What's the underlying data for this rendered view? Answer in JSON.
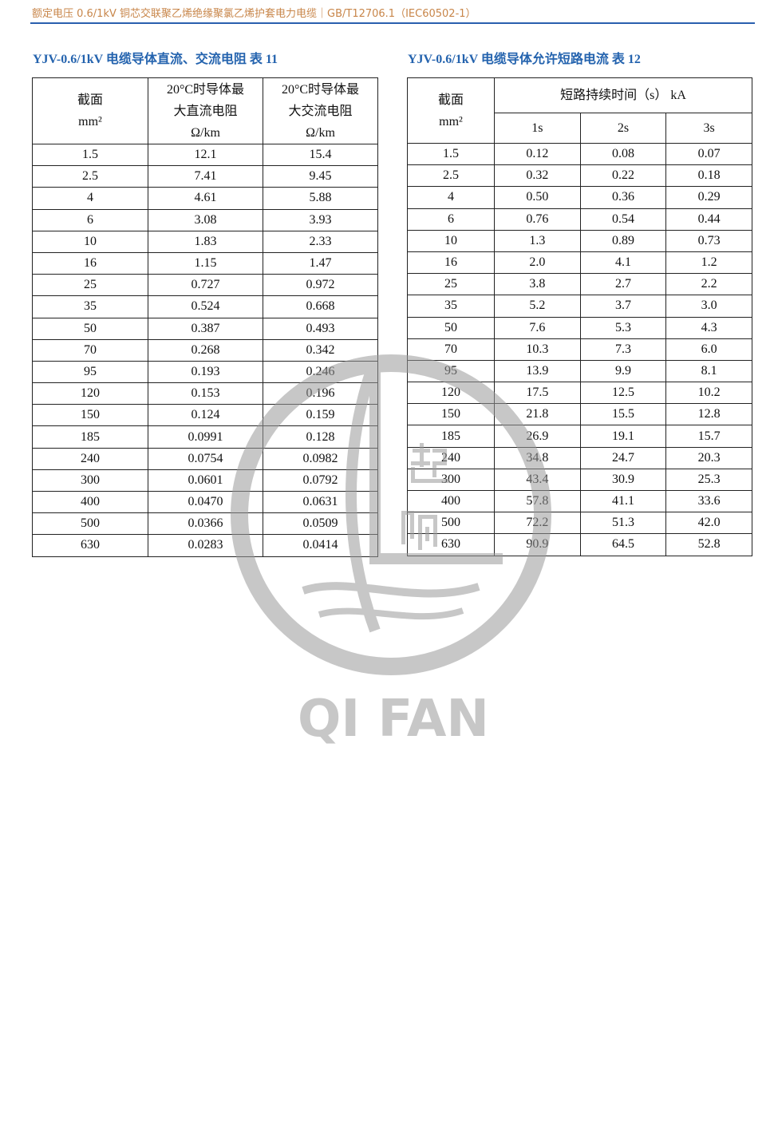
{
  "header": {
    "text": "额定电压 0.6/1kV 铜芯交联聚乙烯绝缘聚氯乙烯护套电力电缆｜GB/T12706.1（IEC60502-1）",
    "rule_color": "#2a5fae"
  },
  "table11": {
    "title": "YJV-0.6/1kV 电缆导体直流、交流电阻  表 11",
    "headers": {
      "section": "截面",
      "section_unit": "mm²",
      "dc_l1": "20°C时导体最",
      "dc_l2": "大直流电阻",
      "dc_unit": "Ω/km",
      "ac_l1": "20°C时导体最",
      "ac_l2": "大交流电阻",
      "ac_unit": "Ω/km"
    },
    "rows": [
      [
        "1.5",
        "12.1",
        "15.4"
      ],
      [
        "2.5",
        "7.41",
        "9.45"
      ],
      [
        "4",
        "4.61",
        "5.88"
      ],
      [
        "6",
        "3.08",
        "3.93"
      ],
      [
        "10",
        "1.83",
        "2.33"
      ],
      [
        "16",
        "1.15",
        "1.47"
      ],
      [
        "25",
        "0.727",
        "0.972"
      ],
      [
        "35",
        "0.524",
        "0.668"
      ],
      [
        "50",
        "0.387",
        "0.493"
      ],
      [
        "70",
        "0.268",
        "0.342"
      ],
      [
        "95",
        "0.193",
        "0.246"
      ],
      [
        "120",
        "0.153",
        "0.196"
      ],
      [
        "150",
        "0.124",
        "0.159"
      ],
      [
        "185",
        "0.0991",
        "0.128"
      ],
      [
        "240",
        "0.0754",
        "0.0982"
      ],
      [
        "300",
        "0.0601",
        "0.0792"
      ],
      [
        "400",
        "0.0470",
        "0.0631"
      ],
      [
        "500",
        "0.0366",
        "0.0509"
      ],
      [
        "630",
        "0.0283",
        "0.0414"
      ]
    ]
  },
  "table12": {
    "title": "YJV-0.6/1kV 电缆导体允许短路电流  表 12",
    "headers": {
      "section": "截面",
      "section_unit": "mm²",
      "group": "短路持续时间（s） kA",
      "c1": "1s",
      "c2": "2s",
      "c3": "3s"
    },
    "rows": [
      [
        "1.5",
        "0.12",
        "0.08",
        "0.07"
      ],
      [
        "2.5",
        "0.32",
        "0.22",
        "0.18"
      ],
      [
        "4",
        "0.50",
        "0.36",
        "0.29"
      ],
      [
        "6",
        "0.76",
        "0.54",
        "0.44"
      ],
      [
        "10",
        "1.3",
        "0.89",
        "0.73"
      ],
      [
        "16",
        "2.0",
        "4.1",
        "1.2"
      ],
      [
        "25",
        "3.8",
        "2.7",
        "2.2"
      ],
      [
        "35",
        "5.2",
        "3.7",
        "3.0"
      ],
      [
        "50",
        "7.6",
        "5.3",
        "4.3"
      ],
      [
        "70",
        "10.3",
        "7.3",
        "6.0"
      ],
      [
        "95",
        "13.9",
        "9.9",
        "8.1"
      ],
      [
        "120",
        "17.5",
        "12.5",
        "10.2"
      ],
      [
        "150",
        "21.8",
        "15.5",
        "12.8"
      ],
      [
        "185",
        "26.9",
        "19.1",
        "15.7"
      ],
      [
        "240",
        "34.8",
        "24.7",
        "20.3"
      ],
      [
        "300",
        "43.4",
        "30.9",
        "25.3"
      ],
      [
        "400",
        "57.8",
        "41.1",
        "33.6"
      ],
      [
        "500",
        "72.2",
        "51.3",
        "42.0"
      ],
      [
        "630",
        "90.9",
        "64.5",
        "52.8"
      ]
    ]
  },
  "watermark": {
    "logo_text": "QI FAN",
    "logo_chars": "起帆",
    "color": "#9a9a9a"
  }
}
